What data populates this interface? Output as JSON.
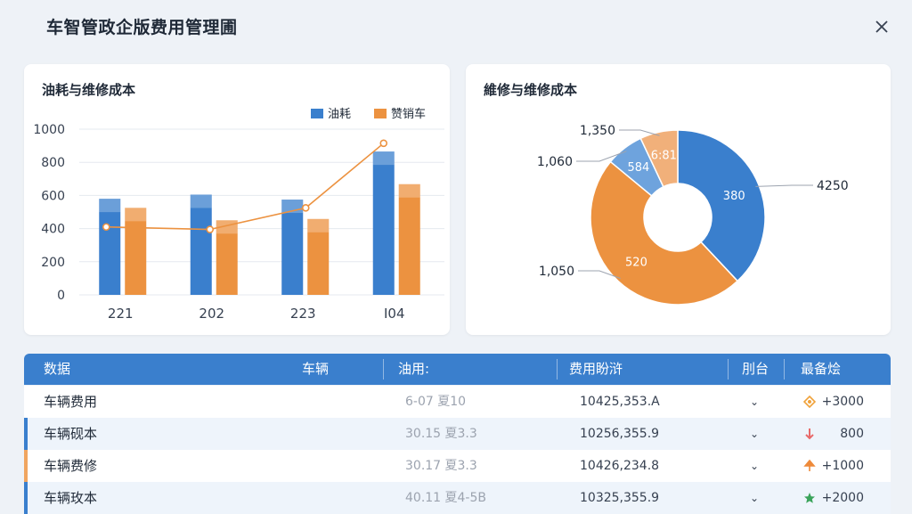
{
  "app": {
    "title": "车智管政企版费用管理圃",
    "close_label": "×"
  },
  "bar_card": {
    "title": "油耗与维修成本"
  },
  "donut_card": {
    "title": "維修与维修成本"
  },
  "table": {
    "headers": [
      "数据",
      "车辆",
      "油用:",
      "费用盼浒",
      "刖台",
      "最备烩"
    ],
    "rows": [
      {
        "name": "车辆费用",
        "oil": "6-07 夏10",
        "cost": "10425,353.A",
        "chevron": "⌄",
        "icon": "diamond-icon",
        "icon_color": "#f0a23a",
        "delta": "+3000",
        "accent": "#ffffff",
        "bg": "#ffffff"
      },
      {
        "name": "车辆砚本",
        "oil": "30.15 夏3.3",
        "cost": "10256,355.9",
        "chevron": "⌄",
        "icon": "arrow-down-icon",
        "icon_color": "#e86a6a",
        "delta": "800",
        "accent": "#3a7fcd",
        "bg": "#eef4fb"
      },
      {
        "name": "车辆费修",
        "oil": "30.17 夏3.3",
        "cost": "10426,234.8",
        "chevron": "⌄",
        "icon": "arrow-up-icon",
        "icon_color": "#ee8a3a",
        "delta": "+1000",
        "accent": "#f0a560",
        "bg": "#ffffff"
      },
      {
        "name": "车辆玫本",
        "oil": "40.11 夏4-5B",
        "cost": "10325,355.9",
        "chevron": "⌄",
        "icon": "star-icon",
        "icon_color": "#3aa35a",
        "delta": "+2000",
        "accent": "#3a7fcd",
        "bg": "#eef4fb"
      }
    ]
  },
  "colors": {
    "blue": "#3a7fcd",
    "blue_light": "#6ea3dd",
    "orange": "#ec9240",
    "orange_light": "#f1b07a",
    "header_blue": "#3a7fcd"
  },
  "chart_data": [
    {
      "type": "bar",
      "title": "油耗与维修成本",
      "categories": [
        "221",
        "202",
        "223",
        "I04"
      ],
      "series": [
        {
          "name": "油耗",
          "values": [
            580,
            605,
            575,
            865
          ],
          "color": "#3a7fcd"
        },
        {
          "name": "赞销车",
          "values": [
            525,
            450,
            458,
            668
          ],
          "color": "#ec9240"
        },
        {
          "name": "line",
          "values": [
            410,
            395,
            525,
            915
          ],
          "color": "#ec9240",
          "type": "line"
        }
      ],
      "ylim": [
        0,
        1000
      ],
      "yticks": [
        "1000",
        "800",
        "600",
        "400",
        "200",
        "0"
      ],
      "legend": "top-right",
      "grid": true
    },
    {
      "type": "pie",
      "title": "維修与维修成本",
      "slices": [
        {
          "label": "380",
          "value": 38,
          "color": "#3a7fcd"
        },
        {
          "label": "520",
          "value": 48,
          "color": "#ec9240"
        },
        {
          "label": "584",
          "value": 7,
          "color": "#6ea3dd"
        },
        {
          "label": "6:81",
          "value": 7,
          "color": "#f1b07a"
        }
      ],
      "outer_labels": [
        "4250",
        "1,050",
        "1,060",
        "1,350"
      ]
    }
  ]
}
